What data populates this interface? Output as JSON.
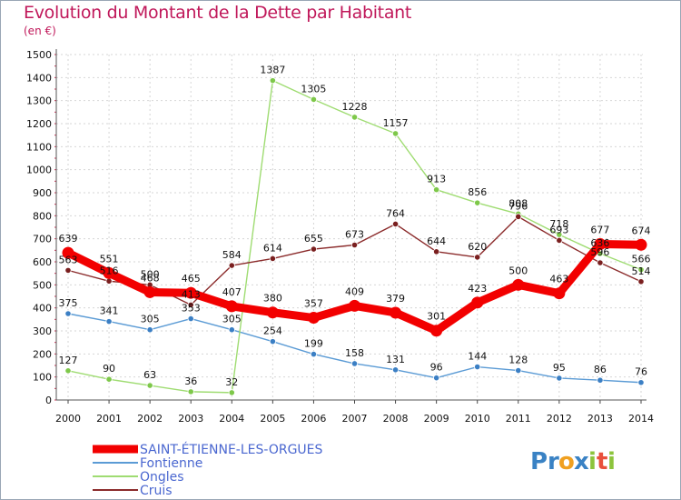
{
  "title": "Evolution du Montant de la Dette par Habitant",
  "unit": "(en €)",
  "logo": {
    "letters": [
      {
        "ch": "P",
        "color": "#3a82c4"
      },
      {
        "ch": "r",
        "color": "#3a82c4"
      },
      {
        "ch": "o",
        "color": "#f0a020"
      },
      {
        "ch": "x",
        "color": "#3a82c4"
      },
      {
        "ch": "i",
        "color": "#8cc43c"
      },
      {
        "ch": "t",
        "color": "#e8503c"
      },
      {
        "ch": "i",
        "color": "#8cc43c"
      }
    ]
  },
  "chart_data": {
    "type": "line",
    "x": [
      2000,
      2001,
      2002,
      2003,
      2004,
      2005,
      2006,
      2007,
      2008,
      2009,
      2010,
      2011,
      2012,
      2013,
      2014
    ],
    "ylim": [
      0,
      1500
    ],
    "yticks": [
      0,
      100,
      200,
      300,
      400,
      500,
      600,
      700,
      800,
      900,
      1000,
      1100,
      1200,
      1300,
      1400,
      1500
    ],
    "grid": true,
    "legend_position": "bottom-left",
    "series": [
      {
        "name": "Fontienne",
        "color": "#5b9bd5",
        "dot": "#3b7fc4",
        "values": [
          375,
          341,
          305,
          353,
          305,
          254,
          199,
          158,
          131,
          96,
          144,
          128,
          95,
          86,
          76
        ],
        "labels": [
          "375",
          "341",
          "305",
          "353",
          "305",
          "254",
          "199",
          "158",
          "131",
          "96",
          "144",
          "128",
          "95",
          "86",
          "76"
        ]
      },
      {
        "name": "Ongles",
        "color": "#9fdc72",
        "dot": "#7ec84a",
        "values": [
          127,
          90,
          63,
          36,
          32,
          1387,
          1305,
          1228,
          1157,
          913,
          856,
          808,
          718,
          636,
          566
        ],
        "labels": [
          "127",
          "90",
          "63",
          "36",
          "32",
          "1387",
          "1305",
          "1228",
          "1157",
          "913",
          "856",
          "808",
          "718",
          "636",
          "566"
        ]
      },
      {
        "name": "Cruis",
        "color": "#8b2b2b",
        "dot": "#7a1f1f",
        "values": [
          563,
          516,
          500,
          413,
          584,
          614,
          655,
          673,
          764,
          644,
          620,
          796,
          693,
          596,
          514
        ],
        "labels": [
          "563",
          "516",
          "500",
          "413",
          "584",
          "614",
          "655",
          "673",
          "764",
          "644",
          "620",
          "796",
          "693",
          "596",
          "514"
        ]
      },
      {
        "name": "SAINT-ÉTIENNE-LES-ORGUES",
        "color": "#f20000",
        "dot": "#f20000",
        "values": [
          639,
          551,
          468,
          465,
          407,
          380,
          357,
          409,
          379,
          301,
          423,
          500,
          463,
          677,
          674
        ],
        "labels": [
          "639",
          "551",
          "468",
          "465",
          "407",
          "380",
          "357",
          "409",
          "379",
          "301",
          "423",
          "500",
          "463",
          "677",
          "674"
        ]
      }
    ]
  }
}
